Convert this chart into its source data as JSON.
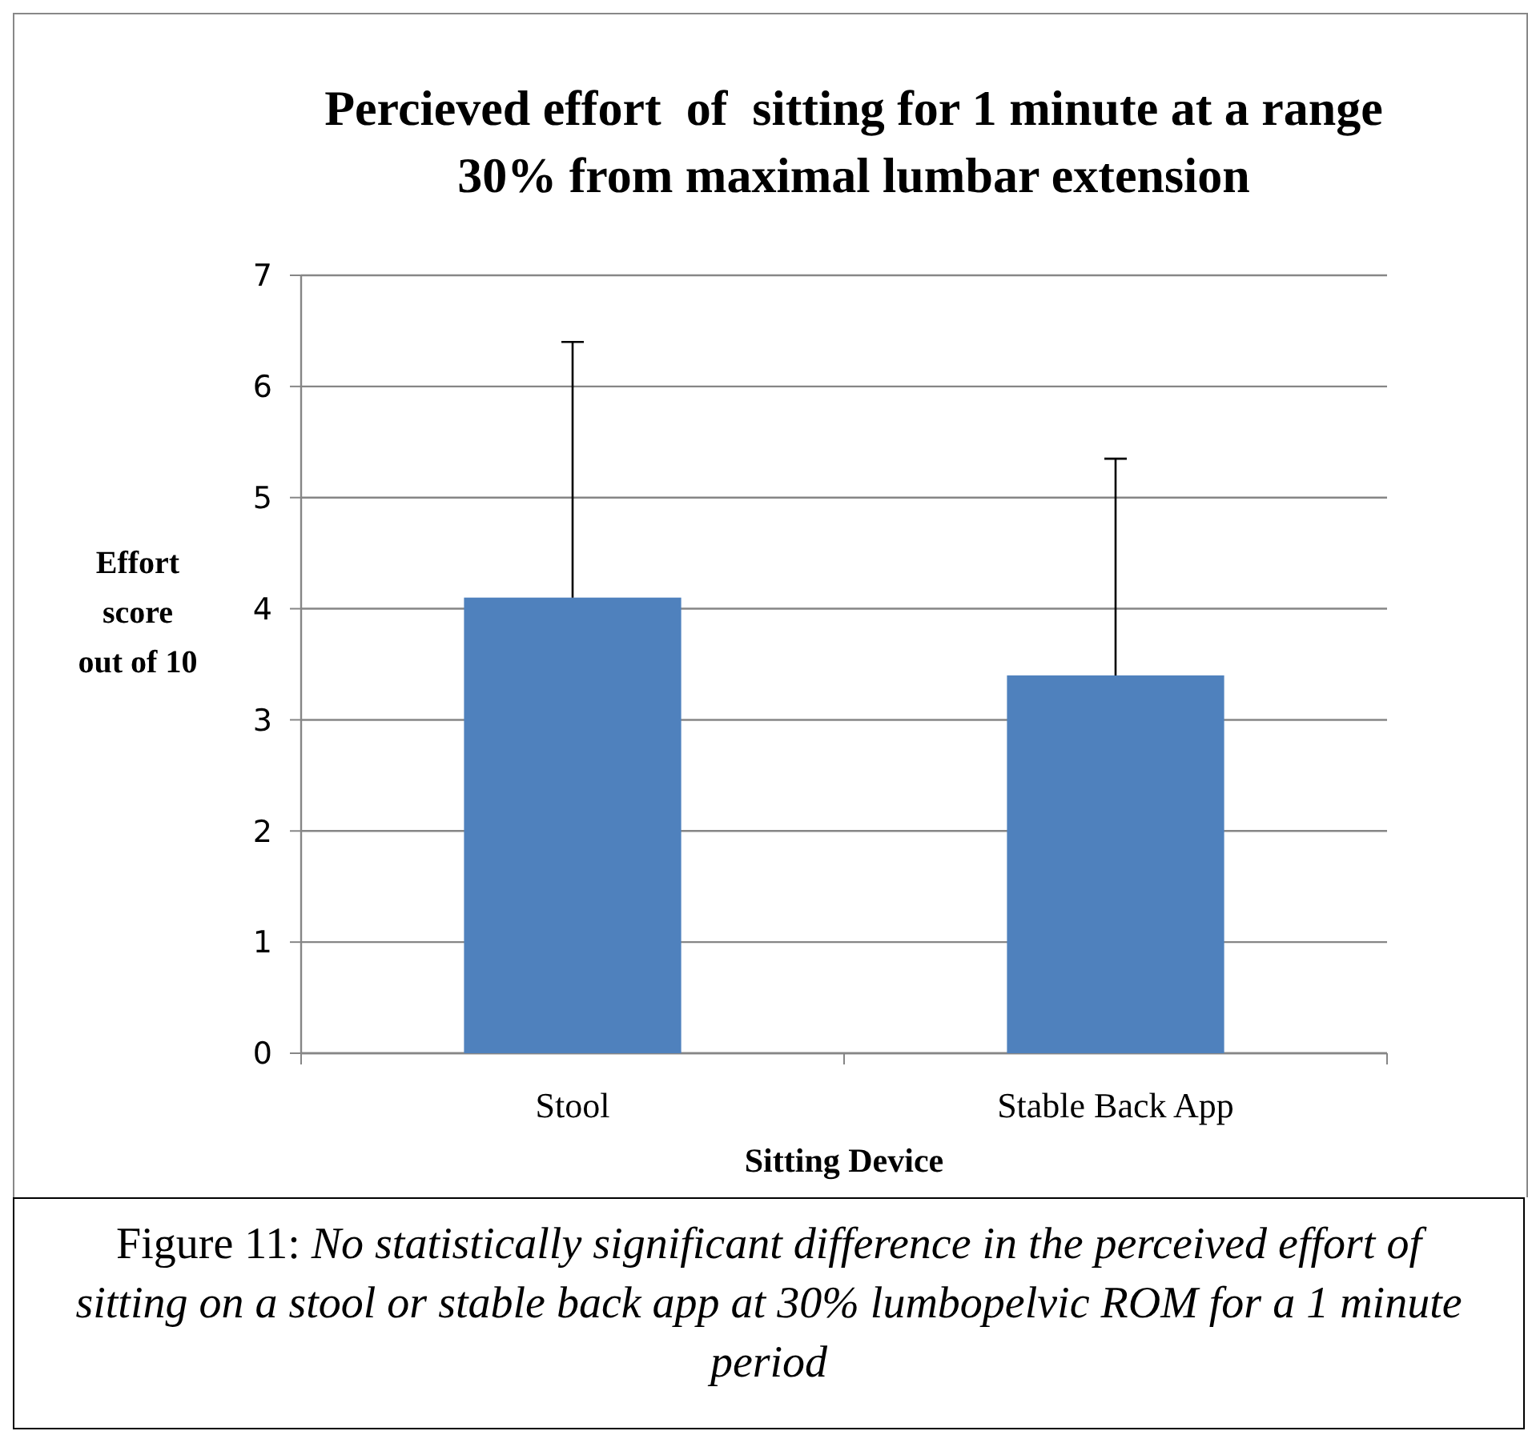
{
  "chart_data": {
    "type": "bar",
    "title": "Percieved effort  of  sitting for 1 minute at a range 30% from maximal lumbar extension",
    "xlabel": "Sitting Device",
    "ylabel": "Effort score out of 10",
    "categories": [
      "Stool",
      "Stable Back App"
    ],
    "values": [
      4.1,
      3.4
    ],
    "errors": [
      [
        4.1,
        6.4
      ],
      [
        3.4,
        5.35
      ]
    ],
    "color": "#4f81bd",
    "ylim": [
      0,
      7
    ],
    "yticks": [
      0,
      1,
      2,
      3,
      4,
      5,
      6,
      7
    ],
    "grid": "y",
    "annotations": [
      "Figure 11:",
      "No statistically significant difference in the perceived effort of sitting on a stool or stable back app at 30% lumbopelvic ROM for a 1 minute period"
    ]
  }
}
